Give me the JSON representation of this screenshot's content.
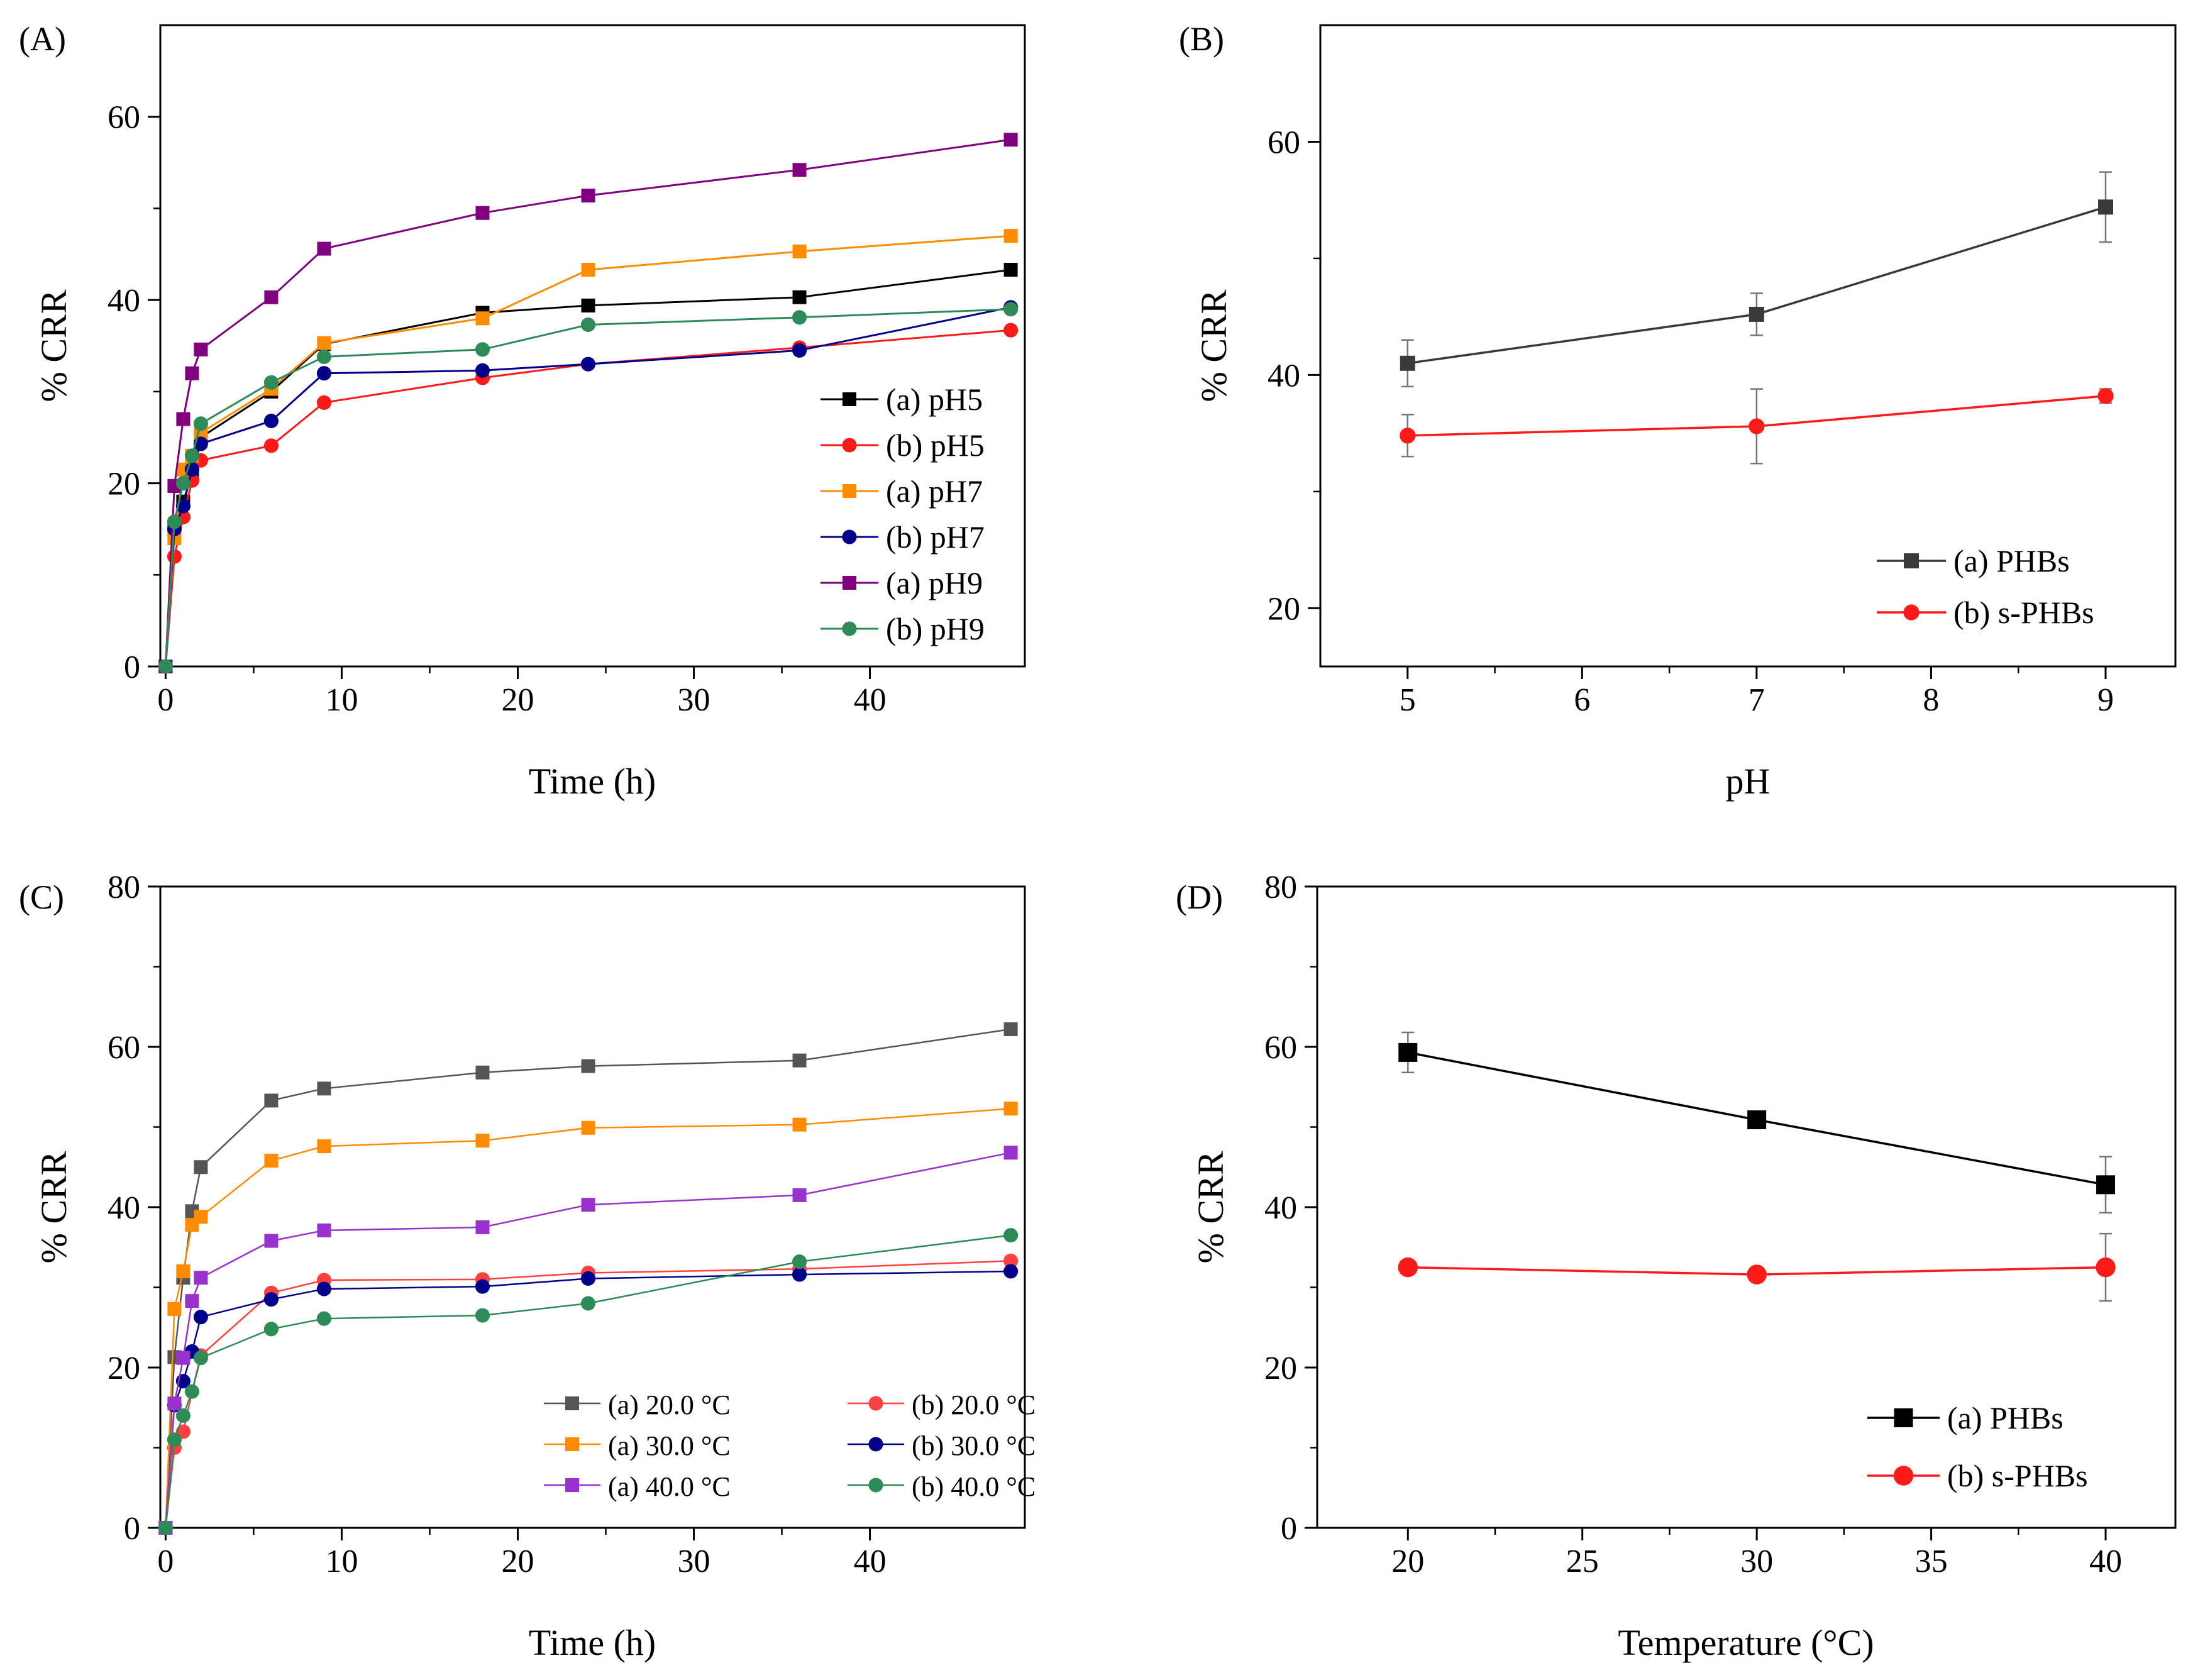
{
  "chart_data": [
    {
      "type": "line",
      "panel_label": "(A)",
      "title": "",
      "xlabel": "Time (h)",
      "ylabel": "% CRR",
      "xlim": [
        -0.3,
        48.8
      ],
      "ylim": [
        0,
        70
      ],
      "xticks": [
        0,
        10,
        20,
        30,
        40
      ],
      "xtick_labels": [
        "0",
        "10",
        "20",
        "30",
        "40"
      ],
      "yticks": [
        0,
        20,
        40,
        60
      ],
      "ytick_labels": [
        "0",
        "20",
        "40",
        "60"
      ],
      "legend_position": "right-middle",
      "x": [
        0,
        0.5,
        1,
        1.5,
        2,
        6,
        9,
        18,
        24,
        36,
        48
      ],
      "series": [
        {
          "name": "(a) pH5",
          "color": "#000000",
          "marker": "square",
          "values": [
            0,
            15,
            18,
            21,
            25,
            30,
            35.2,
            38.6,
            39.4,
            40.3,
            43.3
          ]
        },
        {
          "name": "(b) pH5",
          "color": "#ff1a1a",
          "marker": "circle",
          "values": [
            0,
            12,
            16.3,
            20.3,
            22.5,
            24.1,
            28.8,
            31.5,
            33,
            34.8,
            36.7
          ]
        },
        {
          "name": "(a) pH7",
          "color": "#ff8c00",
          "marker": "square",
          "values": [
            0,
            14,
            21.5,
            23,
            25.5,
            30.3,
            35.3,
            38,
            43.3,
            45.3,
            47
          ]
        },
        {
          "name": "(b) pH7",
          "color": "#00008b",
          "marker": "circle",
          "values": [
            0,
            15,
            17.5,
            21.5,
            24.3,
            26.8,
            32,
            32.3,
            33,
            34.5,
            39.2
          ]
        },
        {
          "name": "(a) pH9",
          "color": "#800080",
          "marker": "square",
          "values": [
            0,
            19.7,
            27,
            32,
            34.6,
            40.3,
            45.6,
            49.5,
            51.4,
            54.2,
            57.5
          ]
        },
        {
          "name": "(b) pH9",
          "color": "#2e8b57",
          "marker": "circle",
          "values": [
            0,
            15.8,
            20,
            23,
            26.5,
            31,
            33.8,
            34.6,
            37.3,
            38.1,
            39
          ]
        }
      ]
    },
    {
      "type": "line",
      "panel_label": "(B)",
      "title": "",
      "xlabel": "pH",
      "ylabel": "% CRR",
      "xlim": [
        4.5,
        9.4
      ],
      "ylim": [
        15,
        70
      ],
      "xticks": [
        5,
        6,
        7,
        8,
        9
      ],
      "xtick_labels": [
        "5",
        "6",
        "7",
        "8",
        "9"
      ],
      "yticks": [
        20,
        40,
        60
      ],
      "ytick_labels": [
        "20",
        "40",
        "60"
      ],
      "legend_position": "bottom-right",
      "x": [
        5,
        7,
        9
      ],
      "series": [
        {
          "name": "(a) PHBs",
          "color": "#3a3a3a",
          "marker": "square",
          "values": [
            41,
            45.2,
            54.4
          ],
          "errors": [
            2,
            1.8,
            3
          ]
        },
        {
          "name": "(b) s-PHBs",
          "color": "#ff1a1a",
          "marker": "circle",
          "values": [
            34.8,
            35.6,
            38.2
          ],
          "errors": [
            1.8,
            3.2,
            0.6
          ]
        }
      ]
    },
    {
      "type": "line",
      "panel_label": "(C)",
      "title": "",
      "xlabel": "Time (h)",
      "ylabel": "% CRR",
      "xlim": [
        -0.3,
        48.8
      ],
      "ylim": [
        0,
        80
      ],
      "xticks": [
        0,
        10,
        20,
        30,
        40
      ],
      "xtick_labels": [
        "0",
        "10",
        "20",
        "30",
        "40"
      ],
      "yticks": [
        0,
        20,
        40,
        60,
        80
      ],
      "ytick_labels": [
        "0",
        "20",
        "40",
        "60",
        "80"
      ],
      "legend_position": "bottom-right",
      "x": [
        0,
        0.5,
        1,
        1.5,
        2,
        6,
        9,
        18,
        24,
        36,
        48
      ],
      "series": [
        {
          "name": "(a) 20.0 °C",
          "color": "#555555",
          "marker": "square",
          "values": [
            0,
            21.3,
            31.2,
            39.5,
            45,
            53.3,
            54.8,
            56.8,
            57.6,
            58.3,
            62.2
          ]
        },
        {
          "name": "(b) 20.0 °C",
          "color": "#ff4040",
          "marker": "circle",
          "values": [
            0,
            10,
            12,
            17,
            21.5,
            29.3,
            30.9,
            31,
            31.8,
            32.3,
            33.3
          ]
        },
        {
          "name": "(a) 30.0 °C",
          "color": "#ff8c00",
          "marker": "square",
          "values": [
            0,
            27.3,
            32,
            37.8,
            38.8,
            45.8,
            47.6,
            48.3,
            49.9,
            50.3,
            52.3
          ]
        },
        {
          "name": "(b) 30.0 °C",
          "color": "#00008b",
          "marker": "circle",
          "values": [
            0,
            15.3,
            18.3,
            22,
            26.3,
            28.5,
            29.8,
            30.1,
            31.1,
            31.6,
            32
          ]
        },
        {
          "name": "(a) 40.0 °C",
          "color": "#9932cc",
          "marker": "square",
          "values": [
            0,
            15.5,
            21.2,
            28.3,
            31.2,
            35.8,
            37.1,
            37.5,
            40.3,
            41.5,
            46.8
          ]
        },
        {
          "name": "(b) 40.0 °C",
          "color": "#2e8b57",
          "marker": "circle",
          "values": [
            0,
            11,
            14,
            17,
            21.2,
            24.8,
            26.1,
            26.5,
            28,
            33.2,
            36.5
          ]
        }
      ]
    },
    {
      "type": "line",
      "panel_label": "(D)",
      "title": "",
      "xlabel": "Temperature (°C)",
      "ylabel": "% CRR",
      "xlim": [
        17.4,
        42
      ],
      "ylim": [
        0,
        80
      ],
      "xticks": [
        20,
        25,
        30,
        35,
        40
      ],
      "xtick_labels": [
        "20",
        "25",
        "30",
        "35",
        "40"
      ],
      "yticks": [
        0,
        20,
        40,
        60,
        80
      ],
      "ytick_labels": [
        "0",
        "20",
        "40",
        "60",
        "80"
      ],
      "legend_position": "bottom-right",
      "x": [
        20,
        30,
        40
      ],
      "series": [
        {
          "name": "(a) PHBs",
          "color": "#000000",
          "marker": "square",
          "values": [
            59.3,
            50.9,
            42.8
          ],
          "errors": [
            2.5,
            1,
            3.5
          ]
        },
        {
          "name": "(b) s-PHBs",
          "color": "#ff1a1a",
          "marker": "circle",
          "values": [
            32.5,
            31.6,
            32.5
          ],
          "errors": [
            0.5,
            0.5,
            4.2
          ]
        }
      ]
    }
  ]
}
